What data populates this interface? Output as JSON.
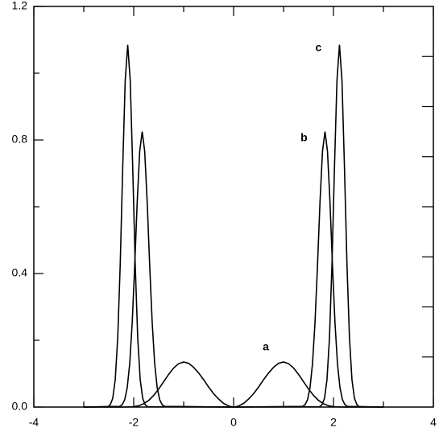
{
  "chart_data": {
    "type": "line",
    "xlim": [
      -4,
      4
    ],
    "ylim": [
      0,
      1.2
    ],
    "xticks": [
      -4,
      -2,
      0,
      2,
      4
    ],
    "xminor_ticks": [
      -3,
      -1,
      1,
      3
    ],
    "yticks": [
      {
        "value": 0,
        "label": "0.0"
      },
      {
        "value": 0.4,
        "label": "0.4"
      },
      {
        "value": 0.8,
        "label": "0.8"
      },
      {
        "value": 1.2,
        "label": "1.2"
      }
    ],
    "yminor_ticks": [
      0.2,
      0.6,
      1.0
    ],
    "y2lim": [
      0,
      1.2
    ],
    "y2ticks": [
      0.15,
      0.3,
      0.45,
      0.6,
      0.75,
      0.9,
      1.05
    ],
    "series": [
      {
        "name": "a",
        "color": "#000000",
        "x": [
          -3,
          -2.2,
          -2.0,
          -1.9,
          -1.8,
          -1.7,
          -1.6,
          -1.5,
          -1.4,
          -1.3,
          -1.2,
          -1.1,
          -1.0,
          -0.9,
          -0.8,
          -0.7,
          -0.6,
          -0.5,
          -0.4,
          -0.3,
          -0.2,
          -0.1,
          0,
          0.1,
          0.2,
          0.3,
          0.4,
          0.5,
          0.6,
          0.7,
          0.8,
          0.9,
          1.0,
          1.1,
          1.2,
          1.3,
          1.4,
          1.5,
          1.6,
          1.7,
          1.8,
          1.9,
          2.0,
          2.2,
          3
        ],
        "values": [
          0,
          0,
          0.001,
          0.004,
          0.01,
          0.02,
          0.035,
          0.054,
          0.076,
          0.098,
          0.117,
          0.13,
          0.135,
          0.131,
          0.119,
          0.102,
          0.082,
          0.06,
          0.04,
          0.024,
          0.011,
          0.003,
          0,
          0.003,
          0.011,
          0.024,
          0.04,
          0.06,
          0.082,
          0.102,
          0.119,
          0.131,
          0.135,
          0.13,
          0.117,
          0.098,
          0.076,
          0.054,
          0.035,
          0.02,
          0.01,
          0.004,
          0.001,
          0,
          0
        ]
      },
      {
        "name": "b",
        "color": "#000000",
        "x": [
          -3,
          -2.28,
          -2.23,
          -2.18,
          -2.13,
          -2.08,
          -2.03,
          -1.98,
          -1.93,
          -1.88,
          -1.83,
          -1.78,
          -1.73,
          -1.68,
          -1.63,
          -1.58,
          -1.53,
          -1.48,
          -1.43,
          -1.38,
          0,
          1.38,
          1.43,
          1.48,
          1.53,
          1.58,
          1.63,
          1.68,
          1.73,
          1.78,
          1.83,
          1.88,
          1.93,
          1.98,
          2.03,
          2.08,
          2.13,
          2.18,
          2.23,
          2.28,
          3
        ],
        "values": [
          0,
          0.002,
          0.007,
          0.022,
          0.058,
          0.13,
          0.253,
          0.424,
          0.614,
          0.766,
          0.825,
          0.766,
          0.614,
          0.424,
          0.253,
          0.13,
          0.058,
          0.022,
          0.007,
          0.002,
          0,
          0.002,
          0.007,
          0.022,
          0.058,
          0.13,
          0.253,
          0.424,
          0.614,
          0.766,
          0.825,
          0.766,
          0.614,
          0.424,
          0.253,
          0.13,
          0.058,
          0.022,
          0.007,
          0.002,
          0
        ]
      },
      {
        "name": "c",
        "color": "#000000",
        "x": [
          -3,
          -2.52,
          -2.47,
          -2.42,
          -2.37,
          -2.32,
          -2.27,
          -2.22,
          -2.17,
          -2.12,
          -2.07,
          -2.02,
          -1.97,
          -1.92,
          -1.87,
          -1.82,
          -1.77,
          -1.72,
          0,
          1.72,
          1.77,
          1.82,
          1.87,
          1.92,
          1.97,
          2.02,
          2.07,
          2.12,
          2.17,
          2.22,
          2.27,
          2.32,
          2.37,
          2.42,
          2.47,
          2.52,
          3
        ],
        "values": [
          0,
          0.001,
          0.007,
          0.026,
          0.082,
          0.208,
          0.428,
          0.718,
          0.979,
          1.085,
          0.979,
          0.718,
          0.428,
          0.208,
          0.082,
          0.026,
          0.007,
          0.001,
          0,
          0.001,
          0.007,
          0.026,
          0.082,
          0.208,
          0.428,
          0.718,
          0.979,
          1.085,
          0.979,
          0.718,
          0.428,
          0.208,
          0.082,
          0.026,
          0.007,
          0.001,
          0
        ]
      }
    ]
  }
}
